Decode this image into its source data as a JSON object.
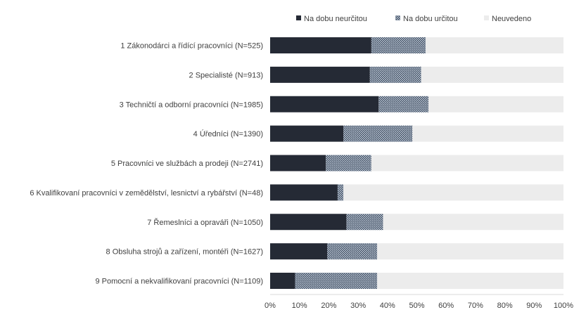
{
  "chart_data": {
    "type": "bar",
    "orientation": "horizontal",
    "stacked": true,
    "percent_stacked": true,
    "title": "",
    "xlabel": "",
    "ylabel": "",
    "xlim": [
      0,
      100
    ],
    "x_ticks": [
      "0%",
      "10%",
      "20%",
      "30%",
      "40%",
      "50%",
      "60%",
      "70%",
      "80%",
      "90%",
      "100%"
    ],
    "grid": false,
    "legend": "top",
    "categories": [
      "1 Zákonodárci a řídící pracovníci (N=525)",
      "2 Specialisté (N=913)",
      "3 Techničtí a odborní pracovníci (N=1985)",
      "4 Úředníci (N=1390)",
      "5 Pracovníci ve službách a prodeji (N=2741)",
      "6 Kvalifikovaní pracovníci v zemědělství, lesnictví a rybářství (N=48)",
      "7 Řemeslníci a opraváři (N=1050)",
      "8 Obsluha strojů a zařízení, montéři (N=1627)",
      "9 Pomocní a nekvalifikovaní pracovníci (N=1109)"
    ],
    "series": [
      {
        "name": "Na dobu neurčitou",
        "color": "#252a35",
        "pattern": "solid",
        "values": [
          34.5,
          34,
          37,
          25,
          19,
          23,
          26,
          19.5,
          8.5
        ]
      },
      {
        "name": "Na dobu určitou",
        "color": "#6b7f96",
        "pattern": "hatched",
        "values": [
          18.5,
          17.5,
          17,
          23.5,
          15.5,
          2,
          12.5,
          17,
          28
        ]
      },
      {
        "name": "Neuvedeno",
        "color": "#ececec",
        "pattern": "solid",
        "values": [
          47,
          48.5,
          46,
          51.5,
          65.5,
          75,
          61.5,
          63.5,
          63.5
        ]
      }
    ]
  }
}
